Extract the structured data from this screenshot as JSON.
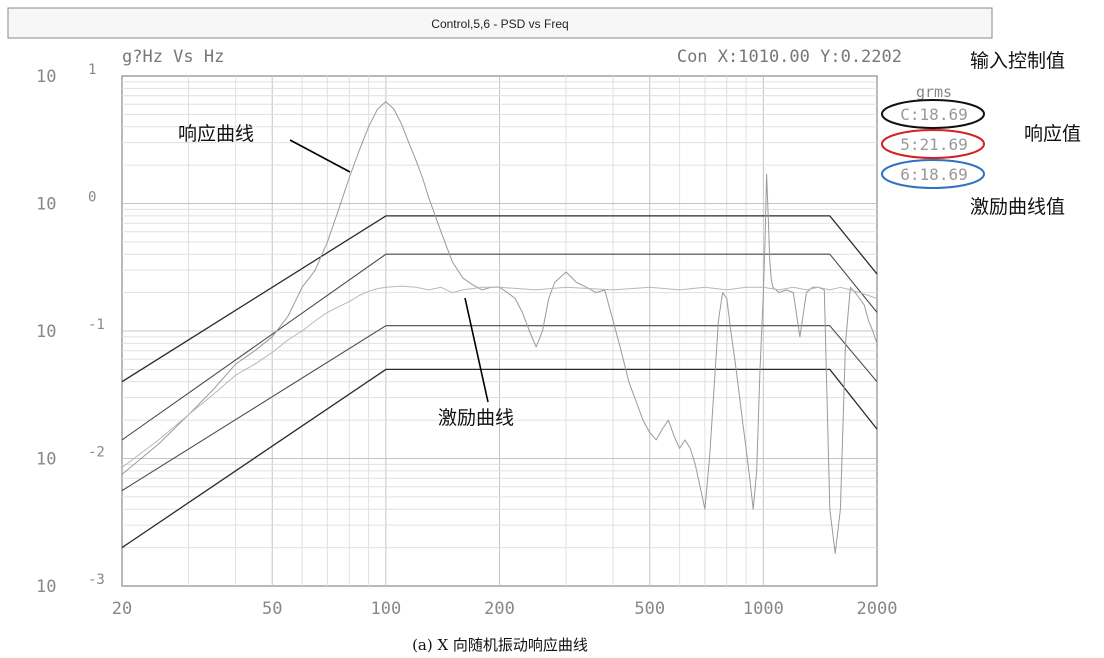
{
  "window": {
    "title": "Control,5,6 - PSD vs  Freq"
  },
  "header": {
    "unit_label": "g?Hz  Vs  Hz",
    "cursor_readout": "Con X:1010.00 Y:0.2202"
  },
  "rms_panel": {
    "heading": "grms",
    "items": [
      {
        "text": "C:18.69",
        "circle_color": "#111111"
      },
      {
        "text": "5:21.69",
        "circle_color": "#d62020"
      },
      {
        "text": "6:18.69",
        "circle_color": "#2f72c4"
      }
    ]
  },
  "annotations": {
    "control_input": "输入控制值",
    "response_value": "响应值",
    "excitation_value": "激励曲线值",
    "response_curve": "响应曲线",
    "excitation_curve": "激励曲线"
  },
  "caption": "(a) X 向随机振动响应曲线",
  "chart_data": {
    "type": "line",
    "x_scale": "log",
    "y_scale": "log",
    "xlim": [
      20,
      2000
    ],
    "ylim": [
      0.001,
      10
    ],
    "grid": true,
    "x_ticks": [
      {
        "value": 20,
        "label": "20"
      },
      {
        "value": 50,
        "label": "50"
      },
      {
        "value": 100,
        "label": "100"
      },
      {
        "value": 200,
        "label": "200"
      },
      {
        "value": 500,
        "label": "500"
      },
      {
        "value": 1000,
        "label": "1000"
      },
      {
        "value": 2000,
        "label": "2000"
      }
    ],
    "y_ticks": [
      {
        "value": 10,
        "base": "10",
        "exp": "1"
      },
      {
        "value": 1,
        "base": "10",
        "exp": "0"
      },
      {
        "value": 0.1,
        "base": "10",
        "exp": "-1"
      },
      {
        "value": 0.01,
        "base": "10",
        "exp": "-2"
      },
      {
        "value": 0.001,
        "base": "10",
        "exp": "-3"
      }
    ],
    "series": [
      {
        "color": "#2a2a2a",
        "width": 1.3,
        "x": [
          20,
          100,
          1500,
          2000
        ],
        "y": [
          0.04,
          0.8,
          0.8,
          0.28
        ]
      },
      {
        "color": "#4a4a4a",
        "width": 1.1,
        "x": [
          20,
          100,
          1500,
          2000
        ],
        "y": [
          0.014,
          0.4,
          0.4,
          0.14
        ]
      },
      {
        "color": "#4a4a4a",
        "width": 1.1,
        "x": [
          20,
          100,
          1500,
          2000
        ],
        "y": [
          0.0056,
          0.11,
          0.11,
          0.04
        ]
      },
      {
        "color": "#2a2a2a",
        "width": 1.3,
        "x": [
          20,
          100,
          1500,
          2000
        ],
        "y": [
          0.002,
          0.05,
          0.05,
          0.017
        ]
      },
      {
        "color": "#9a9a9a",
        "width": 1.0,
        "x": [
          20,
          25,
          30,
          35,
          40,
          45,
          50,
          55,
          60,
          65,
          70,
          75,
          80,
          85,
          90,
          95,
          100,
          105,
          110,
          115,
          120,
          125,
          130,
          140,
          150,
          160,
          170,
          180,
          190,
          200,
          210,
          220,
          230,
          240,
          250,
          260,
          270,
          280,
          300,
          320,
          340,
          360,
          380,
          400,
          420,
          440,
          460,
          480,
          500,
          520,
          540,
          560,
          580,
          600,
          620,
          640,
          660,
          680,
          700,
          720,
          740,
          760,
          780,
          800,
          820,
          840,
          860,
          880,
          900,
          920,
          940,
          960,
          980,
          1000,
          1010,
          1020,
          1030,
          1040,
          1050,
          1060,
          1080,
          1100,
          1150,
          1200,
          1250,
          1300,
          1350,
          1400,
          1450,
          1500,
          1550,
          1600,
          1650,
          1700,
          1750,
          1800,
          1850,
          1900,
          1950,
          2000
        ],
        "y": [
          0.0075,
          0.013,
          0.022,
          0.035,
          0.055,
          0.07,
          0.09,
          0.13,
          0.22,
          0.3,
          0.5,
          0.9,
          1.6,
          2.6,
          4.0,
          5.5,
          6.3,
          5.5,
          4.2,
          3.0,
          2.2,
          1.6,
          1.1,
          0.6,
          0.35,
          0.26,
          0.23,
          0.21,
          0.22,
          0.22,
          0.2,
          0.18,
          0.14,
          0.1,
          0.075,
          0.1,
          0.18,
          0.24,
          0.29,
          0.24,
          0.22,
          0.2,
          0.21,
          0.12,
          0.07,
          0.04,
          0.028,
          0.02,
          0.016,
          0.014,
          0.017,
          0.02,
          0.015,
          0.012,
          0.014,
          0.012,
          0.009,
          0.006,
          0.004,
          0.01,
          0.035,
          0.12,
          0.2,
          0.18,
          0.1,
          0.06,
          0.035,
          0.02,
          0.012,
          0.007,
          0.004,
          0.008,
          0.05,
          0.2,
          0.5,
          1.7,
          0.8,
          0.35,
          0.25,
          0.22,
          0.21,
          0.2,
          0.21,
          0.2,
          0.09,
          0.2,
          0.22,
          0.22,
          0.21,
          0.004,
          0.0018,
          0.004,
          0.08,
          0.22,
          0.2,
          0.18,
          0.16,
          0.12,
          0.1,
          0.08
        ]
      },
      {
        "color": "#b8b8b8",
        "width": 1.0,
        "x": [
          20,
          25,
          30,
          35,
          40,
          45,
          50,
          55,
          60,
          65,
          70,
          75,
          80,
          85,
          90,
          95,
          100,
          110,
          120,
          130,
          140,
          150,
          160,
          180,
          200,
          250,
          300,
          400,
          500,
          600,
          700,
          800,
          900,
          1000,
          1100,
          1200,
          1300,
          1400,
          1500,
          1600,
          1700,
          1800,
          1900,
          2000
        ],
        "y": [
          0.0085,
          0.014,
          0.022,
          0.032,
          0.045,
          0.055,
          0.068,
          0.085,
          0.1,
          0.12,
          0.14,
          0.155,
          0.17,
          0.19,
          0.205,
          0.215,
          0.22,
          0.225,
          0.22,
          0.21,
          0.22,
          0.2,
          0.21,
          0.22,
          0.22,
          0.21,
          0.22,
          0.21,
          0.22,
          0.21,
          0.22,
          0.21,
          0.22,
          0.22,
          0.21,
          0.22,
          0.21,
          0.22,
          0.21,
          0.22,
          0.21,
          0.2,
          0.19,
          0.18
        ]
      }
    ]
  }
}
